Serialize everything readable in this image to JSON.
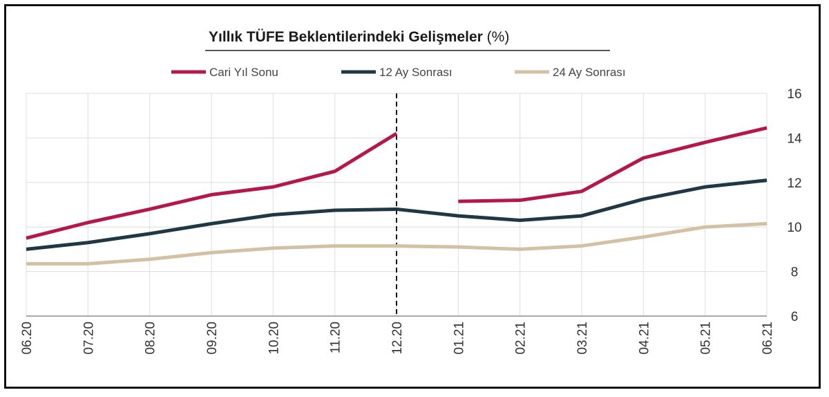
{
  "chart_data": {
    "type": "line",
    "title": "Yıllık TÜFE Beklentilerindeki Gelişmeler",
    "title_unit": "(%)",
    "categories": [
      "06.20",
      "07.20",
      "08.20",
      "09.20",
      "10.20",
      "11.20",
      "12.20",
      "01.21",
      "02.21",
      "03.21",
      "04.21",
      "05.21",
      "06.21"
    ],
    "ylim": [
      6,
      16
    ],
    "yticks": [
      6,
      8,
      10,
      12,
      14,
      16
    ],
    "grid": true,
    "legend_position": "top",
    "vline_category": "12.20",
    "series": [
      {
        "name": "Cari Yıl Sonu",
        "color": "#b5174b",
        "values": [
          9.5,
          10.2,
          10.8,
          11.45,
          11.8,
          12.5,
          14.2,
          11.15,
          11.2,
          11.6,
          13.1,
          13.8,
          14.45
        ]
      },
      {
        "name": "12 Ay Sonrası",
        "color": "#1f3844",
        "values": [
          9.0,
          9.3,
          9.7,
          10.15,
          10.55,
          10.75,
          10.8,
          10.5,
          10.3,
          10.5,
          11.25,
          11.8,
          12.1
        ]
      },
      {
        "name": "24 Ay Sonrası",
        "color": "#d4c1a4",
        "values": [
          8.35,
          8.35,
          8.55,
          8.85,
          9.05,
          9.15,
          9.15,
          9.1,
          9.0,
          9.15,
          9.55,
          10.0,
          10.15
        ]
      }
    ]
  }
}
